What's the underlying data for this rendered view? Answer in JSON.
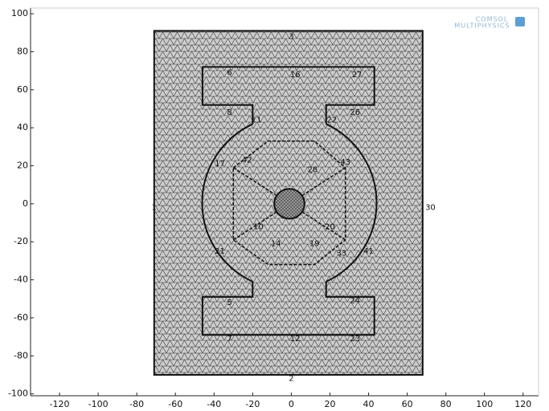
{
  "chart_data": {
    "type": "mesh",
    "xlim": [
      -135,
      128
    ],
    "ylim": [
      -101,
      103
    ],
    "xticks": [
      -120,
      -100,
      -80,
      -60,
      -40,
      -20,
      0,
      20,
      40,
      60,
      80,
      100,
      120
    ],
    "yticks": [
      -100,
      -80,
      -60,
      -40,
      -20,
      0,
      20,
      40,
      60,
      80,
      100
    ],
    "color": "#cdcdcd",
    "edge_labels": [
      "3",
      "2",
      "30",
      "1",
      "6",
      "16",
      "27",
      "8",
      "26",
      "11",
      "22",
      "17",
      "42",
      "28",
      "43",
      "10",
      "20",
      "21",
      "14",
      "19",
      "33",
      "41",
      "5",
      "24",
      "7",
      "12",
      "23"
    ],
    "logo": [
      "COMSOL",
      "MULTIPHYSICS"
    ]
  }
}
